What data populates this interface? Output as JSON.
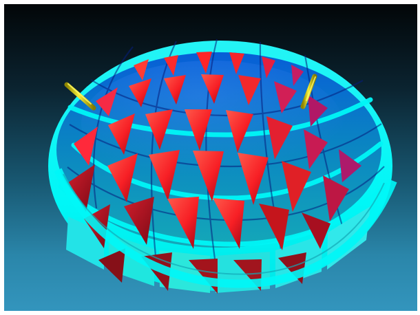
{
  "scene": {
    "background": {
      "top": "#020608",
      "bottom": "#3395bd"
    },
    "colors": {
      "cyan_rim": "#00f7f7",
      "cyan_face": "#14b6c6",
      "blue_inner": "#0e61cc",
      "red_front": "#ff2a2a",
      "red_shadow": "#a60f1c",
      "magenta": "#c41e63",
      "yellow": "#d5cd08"
    },
    "objects": {
      "shell": "ellipsoid-lattice",
      "markers": "yellow-rods"
    }
  }
}
